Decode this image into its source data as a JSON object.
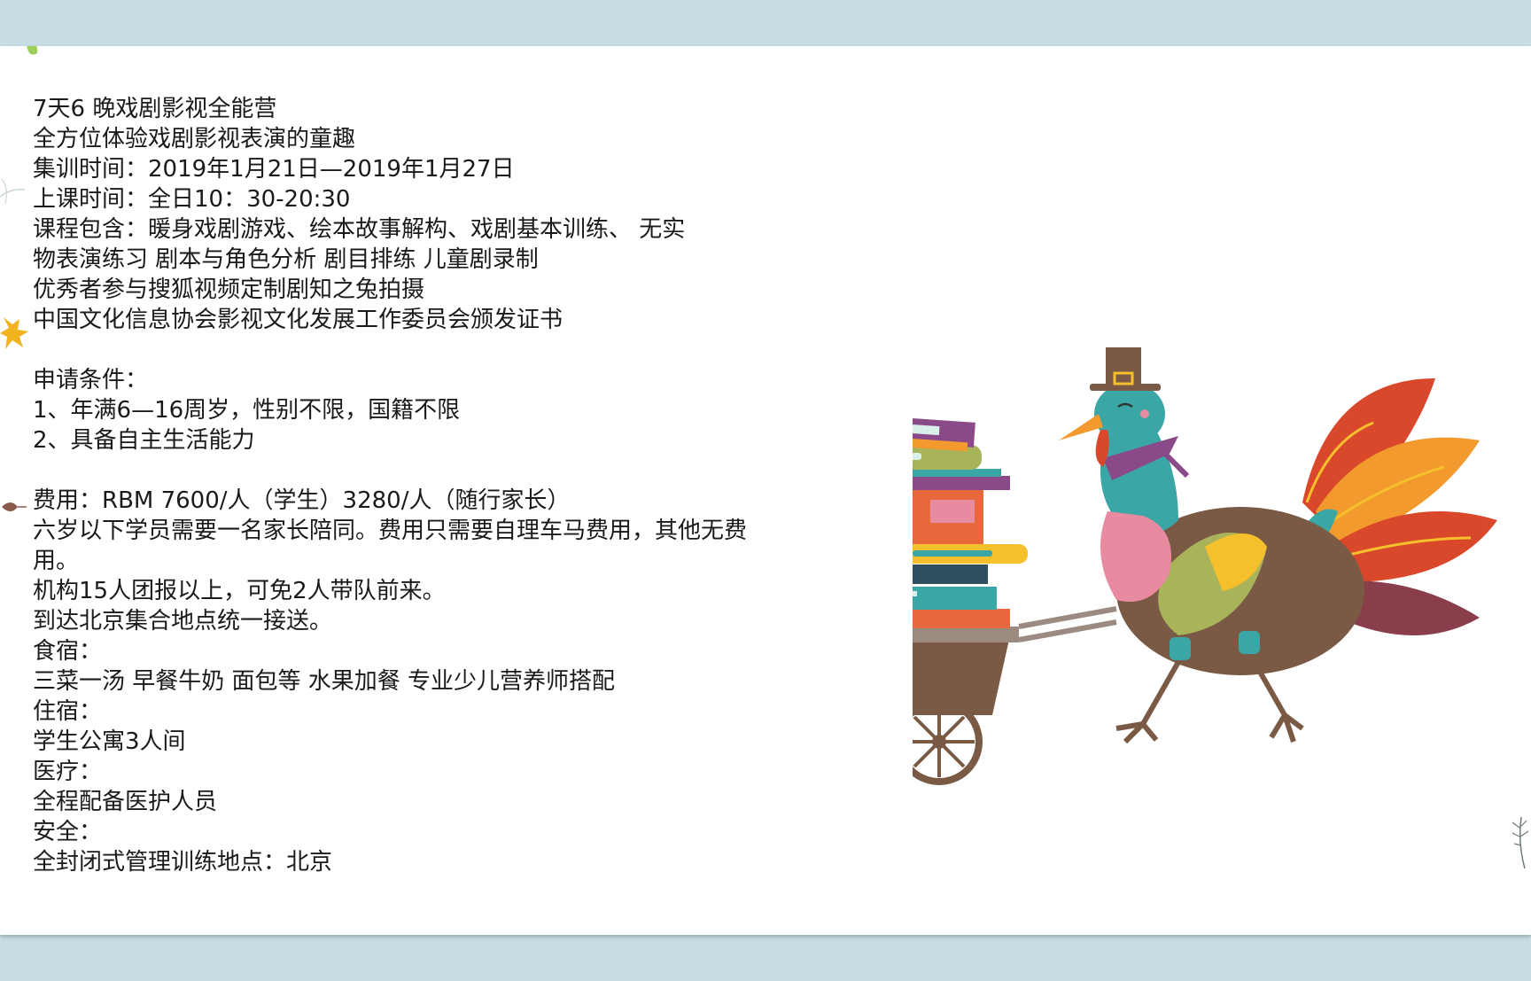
{
  "document": {
    "lines": [
      "7天6 晚戏剧影视全能营",
      "全方位体验戏剧影视表演的童趣",
      "集训时间：2019年1月21日—2019年1月27日",
      "上课时间：全日10：30-20:30",
      "课程包含：暖身戏剧游戏、绘本故事解构、戏剧基本训练、 无实",
      "物表演练习 剧本与角色分析   剧目排练 儿童剧录制",
      "优秀者参与搜狐视频定制剧知之兔拍摄",
      "中国文化信息协会影视文化发展工作委员会颁发证书"
    ],
    "conditions_title": "申请条件：",
    "conditions": [
      "1、年满6—16周岁，性别不限，国籍不限",
      "2、具备自主生活能力"
    ],
    "fee": "费用：RBM 7600/人（学生）3280/人（随行家长）",
    "notes": [
      "六岁以下学员需要一名家长陪同。费用只需要自理车马费用，其他无费用。",
      "机构15人团报以上，可免2人带队前来。",
      "到达北京集合地点统一接送。"
    ],
    "food_title": "食宿：",
    "food": "三菜一汤  早餐牛奶 面包等 水果加餐  专业少儿营养师搭配",
    "lodging_title": "住宿：",
    "lodging": "学生公寓3人间",
    "medical_title": "医疗：",
    "medical": "全程配备医护人员",
    "safety_title": "安全：",
    "safety": "全封闭式管理训练地点：北京"
  },
  "illustration": {
    "icon": "turkey-pushing-book-cart-icon",
    "colors": {
      "body": "#7a5a45",
      "teal": "#3aa6a6",
      "orange": "#f29a2e",
      "red": "#d9482b",
      "pink": "#e88aa0",
      "yellow": "#f5c02c",
      "purple": "#8a4a8a"
    }
  },
  "theme": {
    "frame": "#c5dde3",
    "slide": "#ffffff",
    "text": "#1a1a1a"
  }
}
